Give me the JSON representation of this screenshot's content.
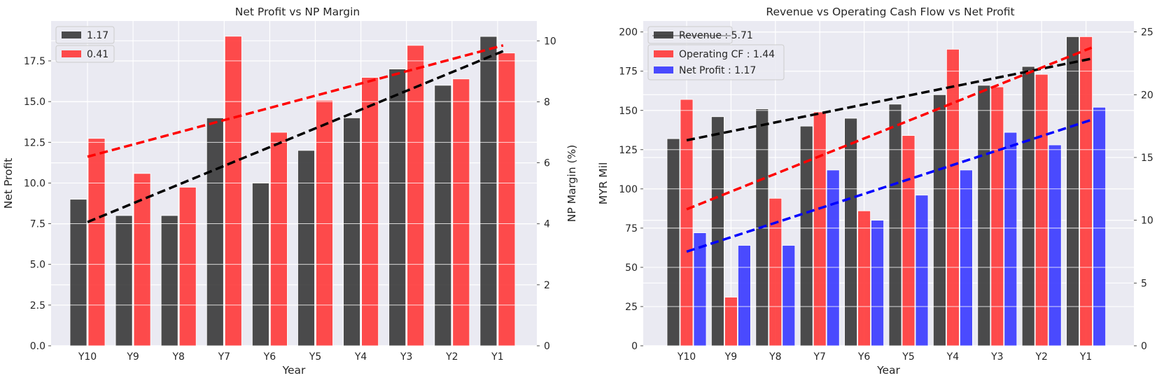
{
  "chart_data": [
    {
      "type": "bar",
      "title": "Net Profit vs NP Margin",
      "xlabel": "Year",
      "ylabel": "Net Profit",
      "ylabel_right": "NP Margin (%)",
      "categories": [
        "Y10",
        "Y9",
        "Y8",
        "Y7",
        "Y6",
        "Y5",
        "Y4",
        "Y3",
        "Y2",
        "Y1"
      ],
      "ylim": [
        0,
        19.95
      ],
      "ylim_right": [
        0,
        10.65
      ],
      "yticks": [
        "0.0",
        "2.5",
        "5.0",
        "7.5",
        "10.0",
        "12.5",
        "15.0",
        "17.5"
      ],
      "yticks_right": [
        "0",
        "2",
        "4",
        "6",
        "8",
        "10"
      ],
      "grid": true,
      "legend_position": "upper-left",
      "series": [
        {
          "name": "1.17",
          "axis": "left",
          "color": "#333333",
          "values": [
            9,
            8,
            8,
            14,
            10,
            12,
            14,
            17,
            16,
            19
          ]
        },
        {
          "name": "0.41",
          "axis": "right",
          "color": "#ff3333",
          "values": [
            6.8,
            5.65,
            5.2,
            10.15,
            7.0,
            8.05,
            8.8,
            9.85,
            8.75,
            9.6
          ]
        }
      ],
      "trendlines": [
        {
          "color": "#000000",
          "axis": "left",
          "from": 7.6,
          "to": 18.1
        },
        {
          "color": "#ff0000",
          "axis": "right",
          "from": 6.2,
          "to": 9.85
        }
      ]
    },
    {
      "type": "bar",
      "title": "Revenue vs Operating Cash Flow vs Net Profit",
      "xlabel": "Year",
      "ylabel": "MYR Mil",
      "categories": [
        "Y10",
        "Y9",
        "Y8",
        "Y7",
        "Y6",
        "Y5",
        "Y4",
        "Y3",
        "Y2",
        "Y1"
      ],
      "ylim": [
        0,
        207
      ],
      "ylim_right": [
        0,
        25.87
      ],
      "yticks": [
        "0",
        "25",
        "50",
        "75",
        "100",
        "125",
        "150",
        "175",
        "200"
      ],
      "yticks_right": [
        "0",
        "5",
        "10",
        "15",
        "20",
        "25"
      ],
      "grid": true,
      "legend_position": "upper-left",
      "series": [
        {
          "name": "Revenue : 5.71",
          "axis": "left",
          "color": "#333333",
          "values": [
            132,
            146,
            151,
            140,
            145,
            154,
            160,
            166,
            178,
            197
          ]
        },
        {
          "name": "Operating CF : 1.44",
          "axis": "left",
          "color": "#ff3333",
          "values": [
            157,
            31,
            94,
            149,
            86,
            134,
            189,
            165,
            173,
            197
          ]
        },
        {
          "name": "Net Profit : 1.17",
          "axis": "right",
          "color": "#3333ff",
          "values": [
            9,
            8,
            8,
            14,
            10,
            12,
            14,
            17,
            16,
            19
          ]
        }
      ],
      "trendlines": [
        {
          "color": "#000000",
          "axis": "left",
          "from": 131,
          "to": 183
        },
        {
          "color": "#ff0000",
          "axis": "left",
          "from": 87,
          "to": 190
        },
        {
          "color": "#0000ff",
          "axis": "right",
          "from": 7.5,
          "to": 18.0
        }
      ]
    }
  ]
}
